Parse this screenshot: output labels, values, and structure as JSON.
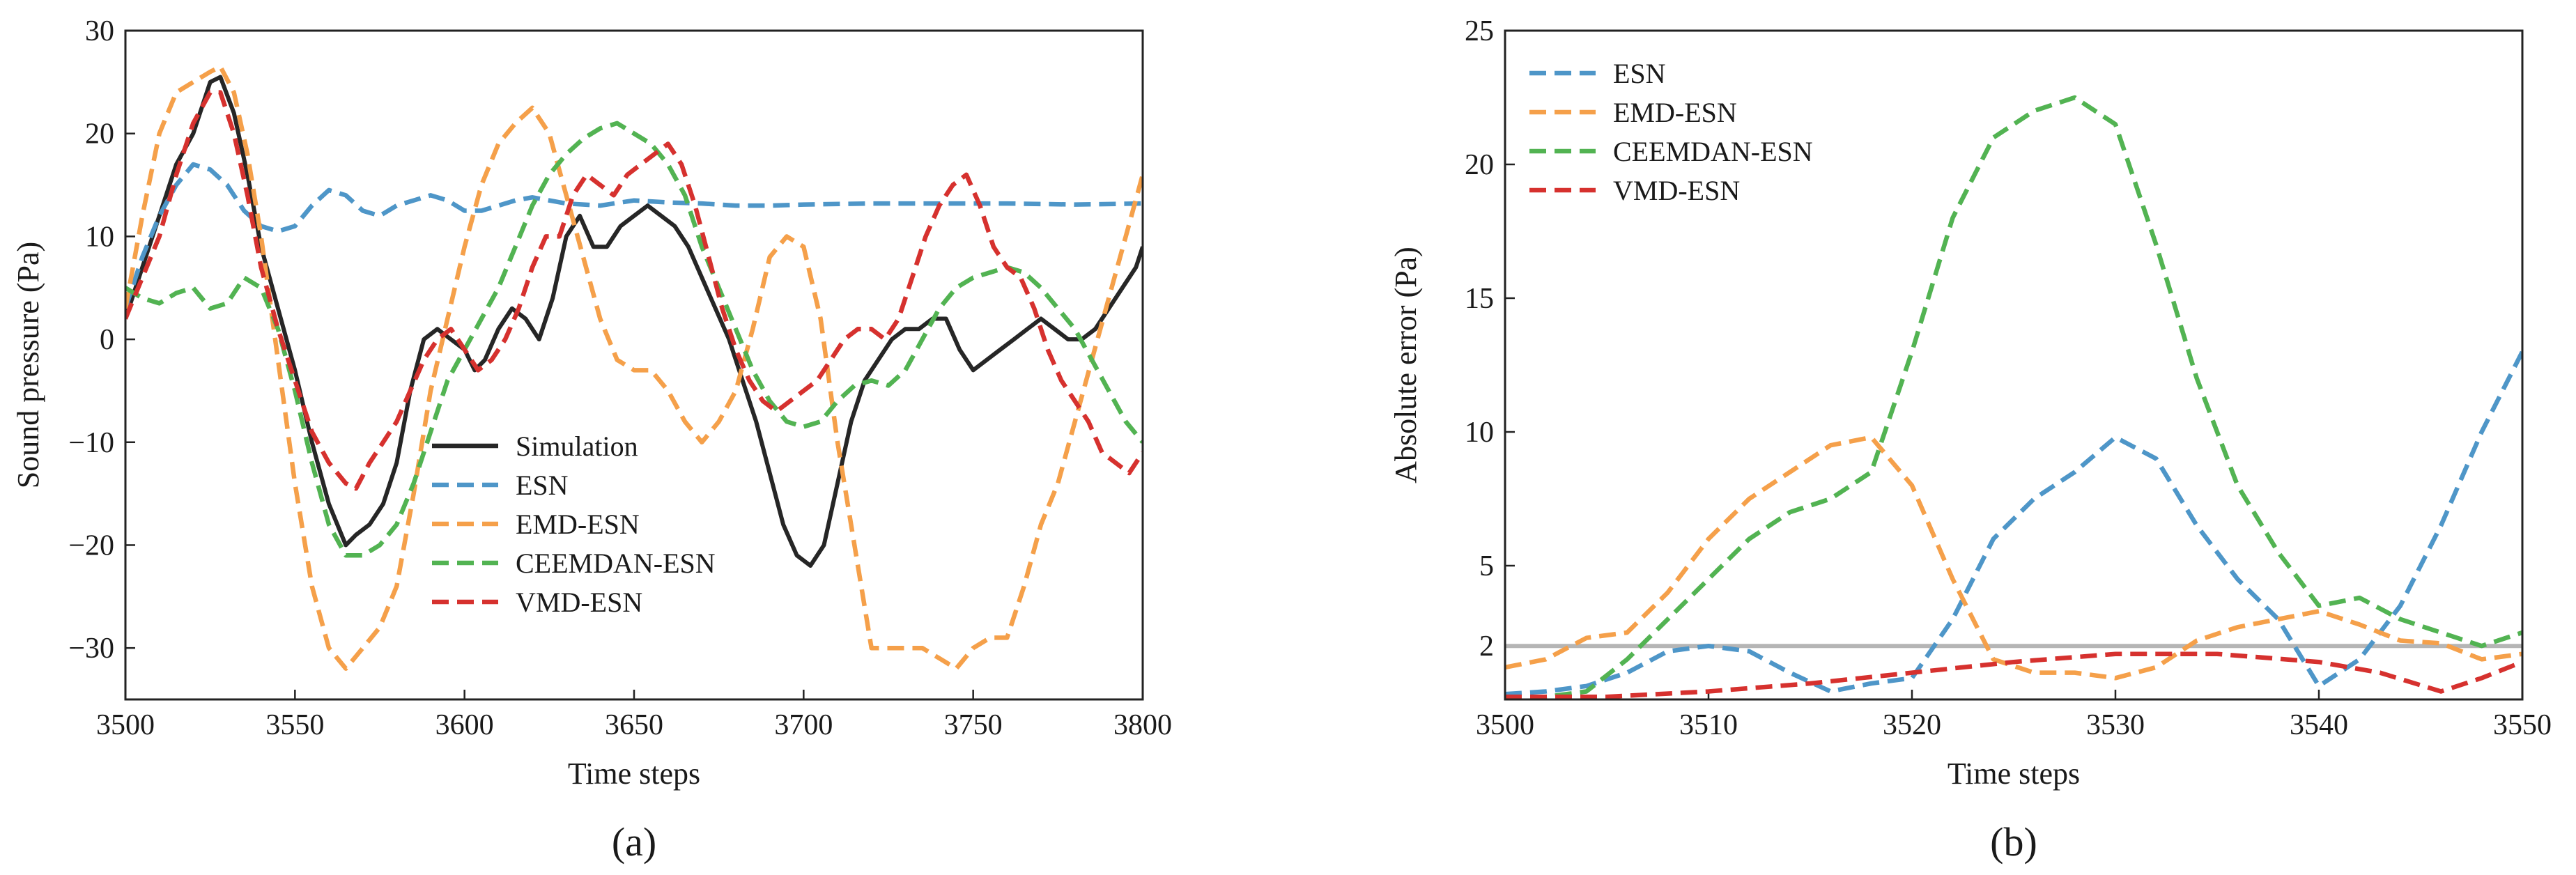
{
  "chart_data": [
    {
      "type": "line",
      "panel_label": "(a)",
      "xlabel": "Time steps",
      "ylabel": "Sound pressure (Pa)",
      "xlim": [
        3500,
        3800
      ],
      "ylim": [
        -35,
        30
      ],
      "xticks": [
        3500,
        3550,
        3600,
        3650,
        3700,
        3750,
        3800
      ],
      "yticks": [
        -30,
        -20,
        -10,
        0,
        10,
        20,
        30
      ],
      "ytick_labels": [
        "−30",
        "−20",
        "−10",
        "0",
        "10",
        "20",
        "30"
      ],
      "grid": false,
      "legend_position": "lower-center",
      "series": [
        {
          "name": "Simulation",
          "color": "#262626",
          "dash": "solid",
          "x": [
            3500,
            3505,
            3510,
            3515,
            3520,
            3525,
            3528,
            3532,
            3536,
            3540,
            3545,
            3550,
            3555,
            3560,
            3565,
            3568,
            3572,
            3576,
            3580,
            3584,
            3588,
            3592,
            3596,
            3600,
            3603,
            3606,
            3610,
            3614,
            3618,
            3622,
            3626,
            3630,
            3634,
            3638,
            3642,
            3646,
            3650,
            3654,
            3658,
            3662,
            3666,
            3670,
            3674,
            3678,
            3682,
            3686,
            3690,
            3694,
            3698,
            3702,
            3706,
            3710,
            3714,
            3718,
            3722,
            3726,
            3730,
            3734,
            3738,
            3742,
            3746,
            3750,
            3754,
            3758,
            3762,
            3766,
            3770,
            3774,
            3778,
            3782,
            3786,
            3790,
            3794,
            3798,
            3800
          ],
          "y": [
            2,
            7,
            12,
            17,
            20,
            25,
            25.5,
            22,
            16,
            9,
            3,
            -3,
            -10,
            -16,
            -20,
            -19,
            -18,
            -16,
            -12,
            -5,
            0,
            1,
            0,
            -1,
            -3,
            -2,
            1,
            3,
            2,
            0,
            4,
            10,
            12,
            9,
            9,
            11,
            12,
            13,
            12,
            11,
            9,
            6,
            3,
            0,
            -4,
            -8,
            -13,
            -18,
            -21,
            -22,
            -20,
            -14,
            -8,
            -4,
            -2,
            0,
            1,
            1,
            2,
            2,
            -1,
            -3,
            -2,
            -1,
            0,
            1,
            2,
            1,
            0,
            0,
            1,
            3,
            5,
            7,
            9
          ]
        },
        {
          "name": "ESN",
          "color": "#4e96c8",
          "dash": "dash",
          "x": [
            3500,
            3505,
            3510,
            3515,
            3520,
            3525,
            3530,
            3535,
            3540,
            3545,
            3550,
            3555,
            3560,
            3565,
            3570,
            3575,
            3580,
            3585,
            3590,
            3595,
            3600,
            3605,
            3610,
            3615,
            3620,
            3625,
            3630,
            3640,
            3650,
            3660,
            3670,
            3680,
            3690,
            3700,
            3720,
            3740,
            3760,
            3780,
            3800
          ],
          "y": [
            3,
            8,
            12,
            15,
            17,
            16.5,
            15,
            12.5,
            11,
            10.5,
            11,
            13,
            14.5,
            14,
            12.5,
            12,
            13,
            13.5,
            14,
            13.5,
            12.5,
            12.5,
            13,
            13.5,
            13.8,
            13.5,
            13.2,
            13,
            13.5,
            13.3,
            13.2,
            13,
            13,
            13.1,
            13.2,
            13.2,
            13.2,
            13.1,
            13.2
          ]
        },
        {
          "name": "EMD-ESN",
          "color": "#f5a04a",
          "dash": "dash",
          "x": [
            3500,
            3505,
            3510,
            3515,
            3520,
            3525,
            3528,
            3532,
            3536,
            3540,
            3545,
            3550,
            3555,
            3560,
            3565,
            3570,
            3575,
            3580,
            3585,
            3590,
            3595,
            3600,
            3605,
            3610,
            3615,
            3620,
            3625,
            3630,
            3635,
            3640,
            3645,
            3650,
            3655,
            3660,
            3665,
            3670,
            3675,
            3680,
            3685,
            3690,
            3695,
            3700,
            3705,
            3710,
            3715,
            3720,
            3725,
            3730,
            3735,
            3740,
            3745,
            3750,
            3755,
            3760,
            3765,
            3770,
            3775,
            3780,
            3785,
            3790,
            3795,
            3800
          ],
          "y": [
            3,
            12,
            20,
            24,
            25,
            26,
            26.5,
            24,
            18,
            10,
            -2,
            -14,
            -24,
            -30,
            -32,
            -30,
            -28,
            -24,
            -15,
            -5,
            2,
            9,
            15,
            19,
            21,
            22.5,
            20,
            14,
            8,
            2,
            -2,
            -3,
            -3,
            -5,
            -8,
            -10,
            -8,
            -5,
            1,
            8,
            10,
            9,
            2,
            -10,
            -20,
            -30,
            -30,
            -30,
            -30,
            -31,
            -32,
            -30,
            -29,
            -29,
            -24,
            -18,
            -14,
            -8,
            -2,
            4,
            10,
            16
          ]
        },
        {
          "name": "CEEMDAN-ESN",
          "color": "#52b352",
          "dash": "dash",
          "x": [
            3500,
            3505,
            3510,
            3515,
            3520,
            3525,
            3530,
            3535,
            3540,
            3545,
            3550,
            3555,
            3560,
            3565,
            3570,
            3575,
            3580,
            3585,
            3590,
            3595,
            3600,
            3605,
            3610,
            3615,
            3620,
            3625,
            3630,
            3635,
            3640,
            3645,
            3650,
            3655,
            3660,
            3665,
            3670,
            3675,
            3680,
            3685,
            3690,
            3695,
            3700,
            3705,
            3710,
            3715,
            3720,
            3725,
            3730,
            3735,
            3740,
            3745,
            3750,
            3755,
            3760,
            3765,
            3770,
            3775,
            3780,
            3785,
            3790,
            3795,
            3800
          ],
          "y": [
            5,
            4,
            3.5,
            4.5,
            5,
            3,
            3.5,
            6,
            5,
            1,
            -5,
            -12,
            -18,
            -21,
            -21,
            -20,
            -18,
            -14,
            -9,
            -4,
            -1,
            2,
            5,
            9,
            13,
            16,
            18,
            19.5,
            20.5,
            21,
            20,
            19,
            17,
            14,
            9,
            5,
            1,
            -3,
            -6,
            -8,
            -8.5,
            -8,
            -6,
            -4.5,
            -4,
            -4.5,
            -3,
            0,
            3,
            5,
            6,
            6.5,
            7,
            6.5,
            5,
            3,
            1,
            -2,
            -5,
            -8,
            -10
          ]
        },
        {
          "name": "VMD-ESN",
          "color": "#d6312e",
          "dash": "dash",
          "x": [
            3500,
            3505,
            3510,
            3515,
            3520,
            3525,
            3528,
            3532,
            3536,
            3540,
            3545,
            3550,
            3555,
            3560,
            3565,
            3568,
            3572,
            3576,
            3580,
            3584,
            3588,
            3592,
            3596,
            3600,
            3604,
            3608,
            3612,
            3616,
            3620,
            3624,
            3628,
            3632,
            3636,
            3640,
            3644,
            3648,
            3652,
            3656,
            3660,
            3664,
            3668,
            3672,
            3676,
            3680,
            3684,
            3688,
            3692,
            3696,
            3700,
            3704,
            3708,
            3712,
            3716,
            3720,
            3724,
            3728,
            3732,
            3736,
            3740,
            3744,
            3748,
            3752,
            3756,
            3760,
            3764,
            3768,
            3772,
            3776,
            3780,
            3784,
            3788,
            3792,
            3796,
            3800
          ],
          "y": [
            2,
            6,
            10,
            16,
            21,
            24,
            24,
            20,
            14,
            7,
            1,
            -4,
            -9,
            -12,
            -14,
            -14.5,
            -12,
            -10,
            -8,
            -5,
            -2,
            0,
            1,
            -1,
            -3,
            -2,
            0,
            3,
            7,
            10,
            10,
            14,
            16,
            15,
            14,
            16,
            17,
            18,
            19,
            17,
            13,
            8,
            3,
            -1,
            -4,
            -6,
            -7,
            -6,
            -5,
            -4,
            -2,
            0,
            1,
            1,
            0,
            2,
            6,
            10,
            13,
            15,
            16,
            13,
            9,
            7,
            6,
            3,
            -1,
            -4,
            -6,
            -8,
            -11,
            -12,
            -13,
            -11
          ]
        }
      ]
    },
    {
      "type": "line",
      "panel_label": "(b)",
      "xlabel": "Time steps",
      "ylabel": "Absolute error (Pa)",
      "xlim": [
        3500,
        3550
      ],
      "ylim": [
        0,
        25
      ],
      "xticks": [
        3500,
        3510,
        3520,
        3530,
        3540,
        3550
      ],
      "yticks": [
        2,
        5,
        10,
        15,
        20,
        25
      ],
      "ytick_labels": [
        "2",
        "5",
        "10",
        "15",
        "20",
        "25"
      ],
      "reference_line": {
        "y": 2,
        "color": "#b5b5b5"
      },
      "grid": false,
      "legend_position": "top-left",
      "series": [
        {
          "name": "ESN",
          "color": "#4e96c8",
          "dash": "dash",
          "x": [
            3500,
            3502,
            3504,
            3506,
            3508,
            3510,
            3512,
            3514,
            3516,
            3518,
            3520,
            3522,
            3524,
            3526,
            3528,
            3530,
            3532,
            3534,
            3536,
            3538,
            3540,
            3542,
            3544,
            3546,
            3548,
            3550
          ],
          "y": [
            0.2,
            0.3,
            0.5,
            1,
            1.8,
            2,
            1.8,
            1,
            0.3,
            0.6,
            0.8,
            3,
            6,
            7.5,
            8.5,
            9.8,
            9,
            6.5,
            4.5,
            3,
            0.5,
            1.5,
            3.5,
            6.5,
            10,
            13
          ]
        },
        {
          "name": "EMD-ESN",
          "color": "#f5a04a",
          "dash": "dash",
          "x": [
            3500,
            3502,
            3504,
            3506,
            3508,
            3510,
            3512,
            3514,
            3516,
            3518,
            3520,
            3522,
            3524,
            3526,
            3528,
            3530,
            3532,
            3534,
            3536,
            3538,
            3540,
            3542,
            3544,
            3546,
            3548,
            3550
          ],
          "y": [
            1.2,
            1.5,
            2.3,
            2.5,
            4,
            6,
            7.5,
            8.5,
            9.5,
            9.8,
            8,
            4.5,
            1.5,
            1,
            1,
            0.8,
            1.2,
            2.2,
            2.7,
            3,
            3.3,
            2.8,
            2.2,
            2.1,
            1.5,
            1.7
          ]
        },
        {
          "name": "CEEMDAN-ESN",
          "color": "#52b352",
          "dash": "dash",
          "x": [
            3500,
            3502,
            3504,
            3506,
            3508,
            3510,
            3512,
            3514,
            3516,
            3518,
            3520,
            3522,
            3524,
            3526,
            3528,
            3530,
            3532,
            3534,
            3536,
            3538,
            3540,
            3542,
            3544,
            3546,
            3548,
            3550
          ],
          "y": [
            0.1,
            0.1,
            0.3,
            1.5,
            3,
            4.5,
            6,
            7,
            7.5,
            8.5,
            13,
            18,
            21,
            22,
            22.5,
            21.5,
            17,
            12,
            8,
            5.5,
            3.5,
            3.8,
            3,
            2.5,
            2,
            2.5
          ]
        },
        {
          "name": "VMD-ESN",
          "color": "#d6312e",
          "dash": "dash",
          "x": [
            3500,
            3505,
            3510,
            3515,
            3520,
            3525,
            3530,
            3535,
            3540,
            3543,
            3546,
            3548,
            3550
          ],
          "y": [
            0.1,
            0.1,
            0.3,
            0.6,
            1,
            1.4,
            1.7,
            1.7,
            1.4,
            1,
            0.3,
            0.8,
            1.4
          ]
        }
      ]
    }
  ]
}
